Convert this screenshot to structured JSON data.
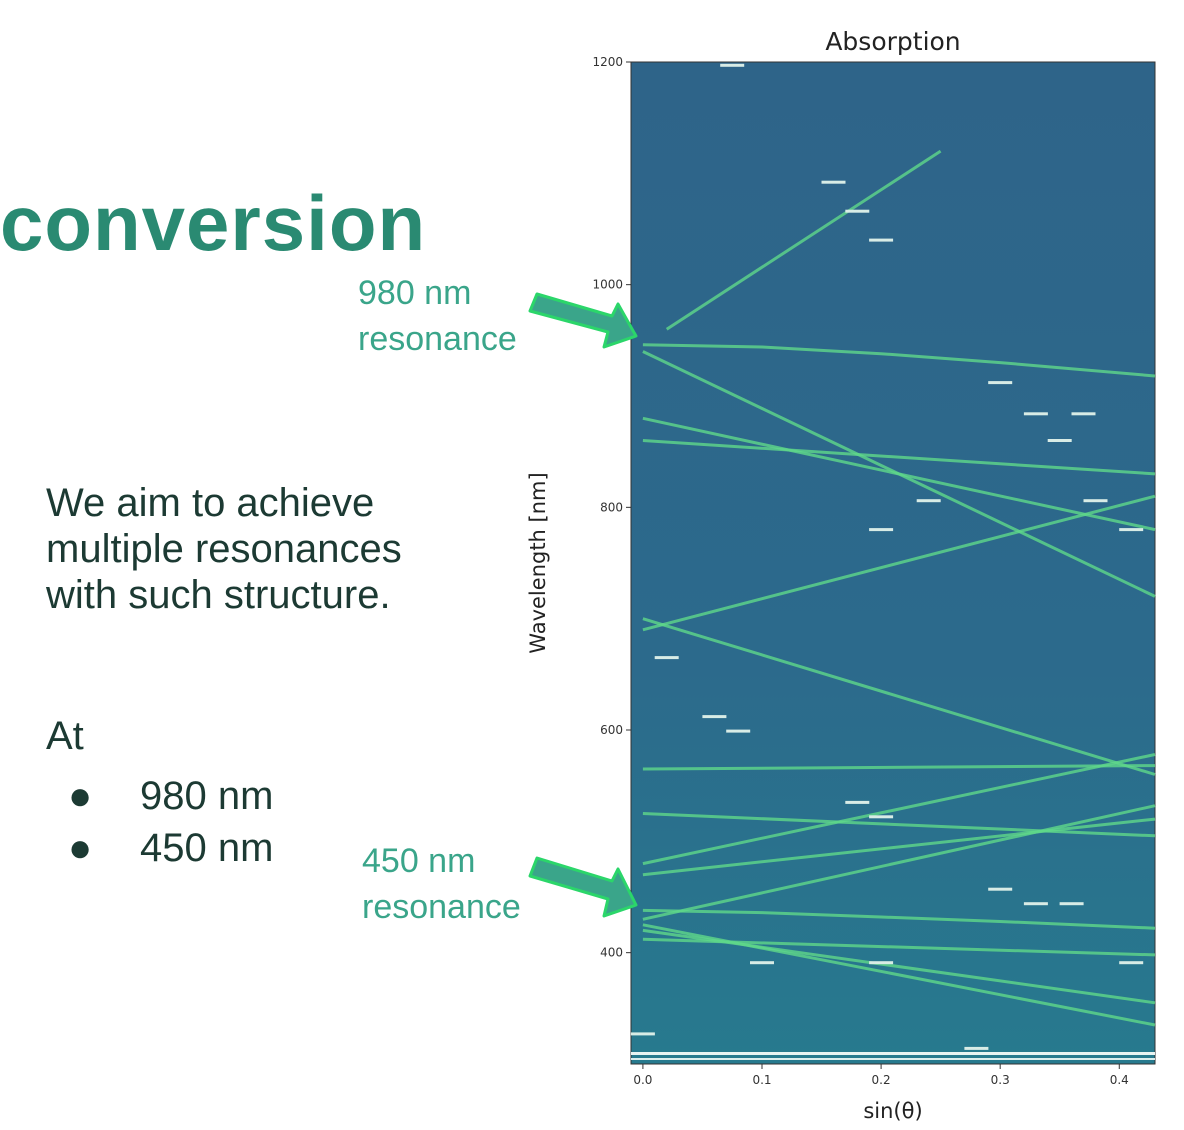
{
  "slide": {
    "title": "conversion",
    "body_text": [
      "We aim to achieve",
      "multiple resonances",
      "with such structure."
    ],
    "at_label": "At",
    "bullets": [
      "980 nm",
      "450 nm"
    ],
    "bullet_glyph": "●",
    "annotation_980": [
      "980 nm",
      "resonance"
    ],
    "annotation_450": [
      "450 nm",
      "resonance"
    ]
  },
  "chart_data": {
    "type": "heatmap",
    "title": "Absorption",
    "xlabel": "sin(θ)",
    "ylabel": "Wavelength [nm]",
    "xlim": [
      -0.01,
      0.43
    ],
    "ylim": [
      300,
      1200
    ],
    "x_ticks": [
      0.0,
      0.1,
      0.2,
      0.3,
      0.4
    ],
    "x_tick_labels": [
      "0.0",
      "0.1",
      "0.2",
      "0.3",
      "0.4"
    ],
    "y_ticks": [
      400,
      600,
      800,
      1000,
      1200
    ],
    "y_tick_labels": [
      "400",
      "600",
      "800",
      "1000",
      "1200"
    ],
    "background_color": "#2d6a8f",
    "resonance_color": "#5fd88a",
    "annotation_color": "#3aa58a",
    "resonances": [
      {
        "x": [
          0.0,
          0.1,
          0.2,
          0.3,
          0.43
        ],
        "y": [
          946,
          944,
          938,
          930,
          918
        ]
      },
      {
        "x": [
          0.0,
          0.1,
          0.2,
          0.3,
          0.43
        ],
        "y": [
          438,
          436,
          432,
          428,
          422
        ]
      },
      {
        "x": [
          0.0,
          0.43
        ],
        "y": [
          412,
          398
        ]
      },
      {
        "x": [
          0.0,
          0.43
        ],
        "y": [
          430,
          532
        ]
      },
      {
        "x": [
          0.0,
          0.43
        ],
        "y": [
          425,
          335
        ]
      },
      {
        "x": [
          0.0,
          0.43
        ],
        "y": [
          420,
          355
        ]
      },
      {
        "x": [
          0.0,
          0.43
        ],
        "y": [
          480,
          578
        ]
      },
      {
        "x": [
          0.0,
          0.43
        ],
        "y": [
          525,
          505
        ]
      },
      {
        "x": [
          0.0,
          0.43
        ],
        "y": [
          565,
          568
        ]
      },
      {
        "x": [
          0.0,
          0.43
        ],
        "y": [
          700,
          560
        ]
      },
      {
        "x": [
          0.0,
          0.43
        ],
        "y": [
          690,
          810
        ]
      },
      {
        "x": [
          0.0,
          0.43
        ],
        "y": [
          860,
          830
        ]
      },
      {
        "x": [
          0.02,
          0.25
        ],
        "y": [
          960,
          1120
        ]
      },
      {
        "x": [
          0.0,
          0.43
        ],
        "y": [
          940,
          720
        ]
      },
      {
        "x": [
          0.0,
          0.43
        ],
        "y": [
          880,
          780
        ]
      },
      {
        "x": [
          0.0,
          0.43
        ],
        "y": [
          470,
          520
        ]
      }
    ],
    "bright_segments": [
      {
        "x": 0.075,
        "y": 1197
      },
      {
        "x": 0.16,
        "y": 1092
      },
      {
        "x": 0.18,
        "y": 1066
      },
      {
        "x": 0.2,
        "y": 1040
      },
      {
        "x": 0.3,
        "y": 912
      },
      {
        "x": 0.33,
        "y": 884
      },
      {
        "x": 0.37,
        "y": 884
      },
      {
        "x": 0.35,
        "y": 860
      },
      {
        "x": 0.24,
        "y": 806
      },
      {
        "x": 0.2,
        "y": 780
      },
      {
        "x": 0.38,
        "y": 806
      },
      {
        "x": 0.41,
        "y": 780
      },
      {
        "x": 0.02,
        "y": 665
      },
      {
        "x": 0.06,
        "y": 612
      },
      {
        "x": 0.08,
        "y": 599
      },
      {
        "x": 0.18,
        "y": 535
      },
      {
        "x": 0.2,
        "y": 522
      },
      {
        "x": 0.3,
        "y": 457
      },
      {
        "x": 0.33,
        "y": 444
      },
      {
        "x": 0.36,
        "y": 444
      },
      {
        "x": 0.1,
        "y": 391
      },
      {
        "x": 0.2,
        "y": 391
      },
      {
        "x": 0.41,
        "y": 391
      },
      {
        "x": 0.0,
        "y": 327
      },
      {
        "x": 0.28,
        "y": 314
      }
    ]
  }
}
